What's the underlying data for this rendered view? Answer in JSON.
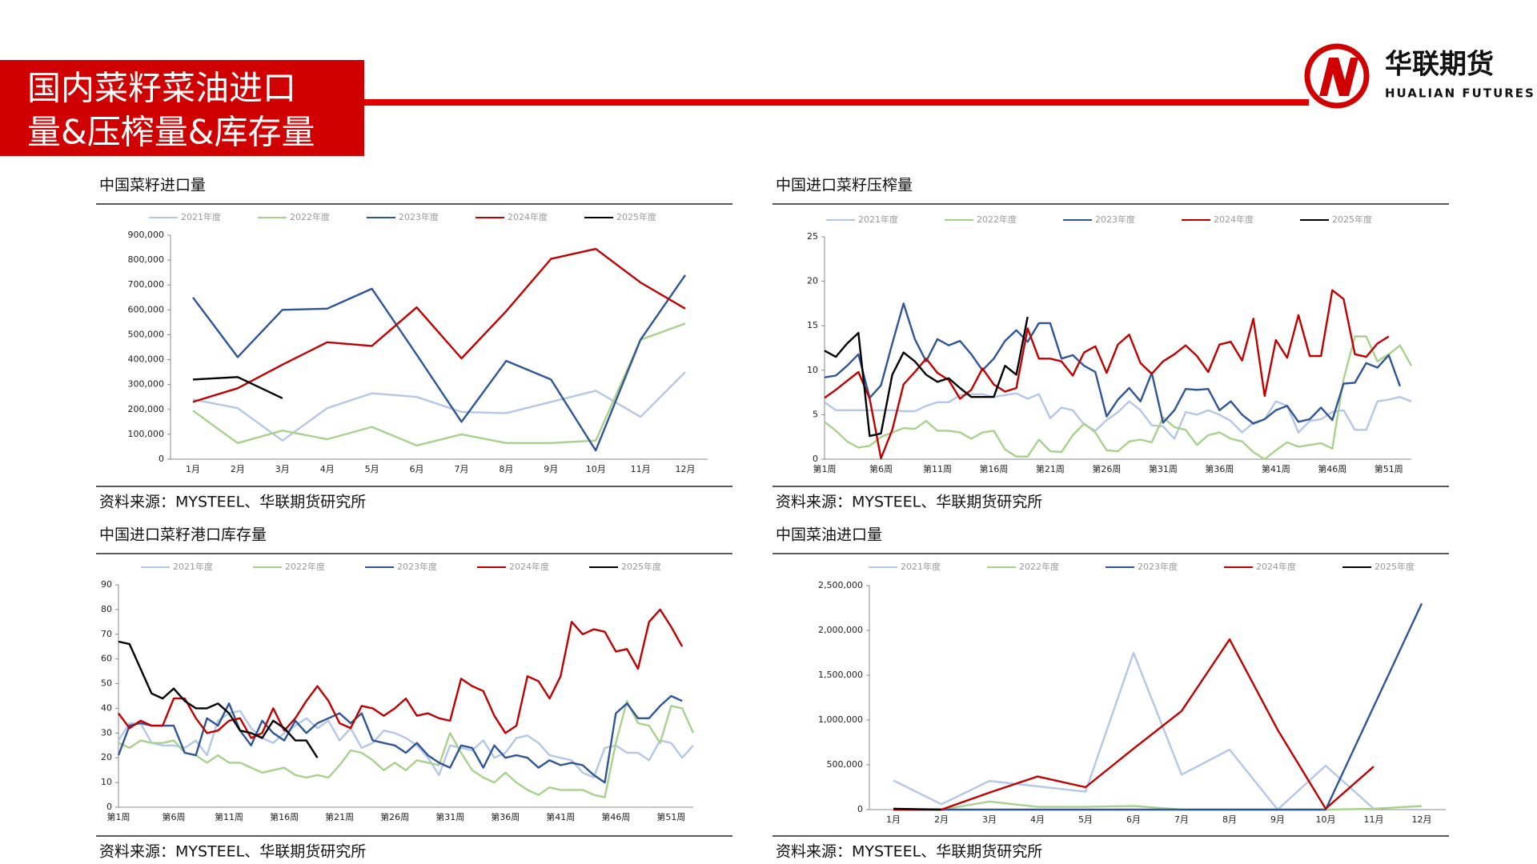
{
  "header": {
    "title_lines": [
      "国内菜籽菜油进口",
      "量&压榨量&库存量"
    ],
    "logo_name": "华联期货",
    "logo_subtitle": "HUALIAN FUTURES"
  },
  "chart_data": [
    {
      "type": "line",
      "title": "中国菜籽进口量",
      "source": "资料来源：MYSTEEL、华联期货研究所",
      "categories": [
        "1月",
        "2月",
        "3月",
        "4月",
        "5月",
        "6月",
        "7月",
        "8月",
        "9月",
        "10月",
        "11月",
        "12月"
      ],
      "ylim": [
        0,
        900000
      ],
      "yticks": [
        0,
        {
          "value": 100000,
          "label": "100,000"
        },
        {
          "value": 200000,
          "label": "200,000"
        },
        {
          "value": 300000,
          "label": "300,000"
        },
        {
          "value": 400000,
          "label": "400,000"
        },
        {
          "value": 500000,
          "label": "500,000"
        },
        {
          "value": 600000,
          "label": "600,000"
        },
        {
          "value": 700000,
          "label": "700,000"
        },
        {
          "value": 800000,
          "label": "800,000"
        },
        {
          "value": 900000,
          "label": "900,000"
        }
      ],
      "series": [
        {
          "name": "2021年度",
          "color": "#b4c7e7",
          "values": [
            240000,
            205000,
            75000,
            205000,
            265000,
            250000,
            190000,
            185000,
            230000,
            275000,
            170000,
            350000
          ]
        },
        {
          "name": "2022年度",
          "color": "#a9d18e",
          "values": [
            195000,
            65000,
            115000,
            80000,
            130000,
            55000,
            100000,
            65000,
            65000,
            75000,
            480000,
            545000
          ]
        },
        {
          "name": "2023年度",
          "color": "#2f5597",
          "values": [
            650000,
            410000,
            600000,
            605000,
            685000,
            420000,
            150000,
            395000,
            320000,
            35000,
            480000,
            740000
          ]
        },
        {
          "name": "2024年度",
          "color": "#c00000",
          "values": [
            230000,
            285000,
            380000,
            470000,
            455000,
            610000,
            405000,
            595000,
            805000,
            845000,
            710000,
            605000
          ]
        },
        {
          "name": "2025年度",
          "color": "#000000",
          "values": [
            320000,
            330000,
            245000,
            null,
            null,
            null,
            null,
            null,
            null,
            null,
            null,
            null
          ]
        }
      ]
    },
    {
      "type": "line",
      "title": "中国进口菜籽压榨量",
      "source": "资料来源：MYSTEEL、华联期货研究所",
      "categories": [
        "第1周",
        null,
        null,
        null,
        null,
        "第6周",
        null,
        null,
        null,
        null,
        "第11周",
        null,
        null,
        null,
        null,
        "第16周",
        null,
        null,
        null,
        null,
        "第21周",
        null,
        null,
        null,
        null,
        "第26周",
        null,
        null,
        null,
        null,
        "第31周",
        null,
        null,
        null,
        null,
        "第36周",
        null,
        null,
        null,
        null,
        "第41周",
        null,
        null,
        null,
        null,
        "第46周",
        null,
        null,
        null,
        null,
        "第51周",
        null,
        null
      ],
      "ylim": [
        0,
        25
      ],
      "yticks": [
        0,
        5,
        10,
        15,
        20,
        25
      ],
      "series": [
        {
          "name": "2021年度",
          "color": "#b4c7e7",
          "values": [
            6.4,
            5.5,
            5.5,
            5.5,
            5.5,
            5.5,
            5.5,
            5.4,
            5.4,
            6,
            6.4,
            6.4,
            7.2,
            7.3,
            7.3,
            7.0,
            7.2,
            7.4,
            6.8,
            7.3,
            4.6,
            5.8,
            5.5,
            3.9,
            3.2,
            4.4,
            5.3,
            6.5,
            5.5,
            3.8,
            3.7,
            2.3,
            5.3,
            5.0,
            5.5,
            5.0,
            4.3,
            3.0,
            4.1,
            4.5,
            6.5,
            6.0,
            3.0,
            4.3,
            4.5,
            5.3,
            5.5,
            3.3,
            3.3,
            6.5,
            6.7,
            7.0,
            6.5
          ]
        },
        {
          "name": "2022年度",
          "color": "#a9d18e",
          "values": [
            4.2,
            3.2,
            2.0,
            1.3,
            1.5,
            2.5,
            3,
            3.5,
            3.4,
            4.3,
            3.2,
            3.2,
            3.0,
            2.3,
            3.0,
            3.2,
            1.1,
            0.3,
            0.3,
            2.2,
            0.9,
            0.8,
            2.7,
            4.0,
            3.0,
            1.0,
            0.9,
            2.0,
            2.2,
            1.9,
            4.7,
            3.6,
            3.3,
            1.6,
            2.7,
            3.0,
            2.3,
            2.0,
            0.8,
            0,
            1,
            1.9,
            1.4,
            1.6,
            1.8,
            1.2,
            9.0,
            13.8,
            13.8,
            11.0,
            11.8,
            12.8,
            10.5
          ]
        },
        {
          "name": "2023年度",
          "color": "#2f5597",
          "values": [
            9.2,
            9.4,
            10.5,
            11.8,
            6.9,
            8.3,
            13.0,
            17.5,
            13.5,
            11.0,
            13.5,
            12.8,
            13.3,
            11.8,
            10.0,
            11.3,
            13.3,
            14.5,
            13.2,
            15.3,
            15.3,
            11.3,
            11.7,
            10.5,
            9.8,
            4.8,
            6.7,
            8.0,
            6.5,
            9.7,
            4.1,
            5.5,
            7.9,
            7.8,
            7.9,
            5.5,
            6.5,
            5.0,
            4.0,
            4.5,
            5.5,
            6.0,
            4.2,
            4.5,
            5.8,
            4.4,
            8.5,
            8.6,
            10.8,
            10.3,
            11.7,
            8.2,
            null
          ]
        },
        {
          "name": "2024年度",
          "color": "#c00000",
          "values": [
            6.9,
            7.8,
            8.8,
            9.8,
            6.8,
            0.1,
            3.3,
            8.4,
            9.8,
            11.3,
            9.7,
            8.9,
            6.8,
            7.8,
            10.2,
            8.4,
            7.6,
            8.0,
            14.7,
            11.3,
            11.3,
            11.0,
            9.4,
            12.0,
            12.7,
            9.7,
            12.9,
            14.0,
            10.8,
            9.6,
            11.0,
            11.8,
            12.8,
            11.6,
            9.8,
            12.9,
            13.2,
            11.1,
            15.8,
            7.1,
            13.4,
            11.4,
            16.2,
            11.6,
            11.6,
            19.0,
            18.0,
            11.8,
            11.5,
            13.0,
            13.8,
            null,
            null
          ]
        },
        {
          "name": "2025年度",
          "color": "#000000",
          "values": [
            12.2,
            11.5,
            13.0,
            14.2,
            2.6,
            2.9,
            9.5,
            12.0,
            11.0,
            9.5,
            8.7,
            9.1,
            8.0,
            7.0,
            7.0,
            7.0,
            10.5,
            9.5,
            16.0,
            null,
            null,
            null,
            null,
            null,
            null,
            null,
            null,
            null,
            null,
            null,
            null,
            null,
            null,
            null,
            null,
            null,
            null,
            null,
            null,
            null,
            null,
            null,
            null,
            null,
            null,
            null,
            null,
            null,
            null,
            null,
            null,
            null,
            null
          ]
        }
      ]
    },
    {
      "type": "line",
      "title": "中国进口菜籽港口库存量",
      "source": "资料来源：MYSTEEL、华联期货研究所",
      "categories": [
        "第1周",
        null,
        null,
        null,
        null,
        "第6周",
        null,
        null,
        null,
        null,
        "第11周",
        null,
        null,
        null,
        null,
        "第16周",
        null,
        null,
        null,
        null,
        "第21周",
        null,
        null,
        null,
        null,
        "第26周",
        null,
        null,
        null,
        null,
        "第31周",
        null,
        null,
        null,
        null,
        "第36周",
        null,
        null,
        null,
        null,
        "第41周",
        null,
        null,
        null,
        null,
        "第46周",
        null,
        null,
        null,
        null,
        "第51周",
        null,
        null
      ],
      "ylim": [
        0,
        90
      ],
      "yticks": [
        0,
        10,
        20,
        30,
        40,
        50,
        60,
        70,
        80,
        90
      ],
      "series": [
        {
          "name": "2021年度",
          "color": "#b4c7e7",
          "values": [
            27,
            34,
            34,
            26,
            25,
            25,
            24,
            27,
            21,
            35,
            38,
            39,
            32,
            28,
            26,
            30,
            33,
            36,
            32,
            35,
            27,
            32,
            24,
            26,
            31,
            30,
            28,
            25,
            20,
            13,
            25,
            24,
            23,
            27,
            20,
            22,
            28,
            29,
            26,
            21,
            20,
            19,
            14,
            12,
            24,
            25,
            22,
            22,
            19,
            27,
            26,
            20,
            25
          ]
        },
        {
          "name": "2022年度",
          "color": "#a9d18e",
          "values": [
            26,
            24,
            27,
            26,
            26,
            27,
            22,
            21,
            18,
            21,
            18,
            18,
            16,
            14,
            15,
            16,
            13,
            12,
            13,
            12,
            17,
            23,
            22,
            19,
            15,
            18,
            15,
            19,
            18,
            17,
            30,
            22,
            15,
            12,
            10,
            14,
            10,
            7,
            5,
            8,
            7,
            7,
            7,
            5,
            4,
            26,
            43,
            34,
            33,
            26,
            41,
            40,
            30
          ]
        },
        {
          "name": "2023年度",
          "color": "#2f5597",
          "values": [
            21,
            33,
            34,
            33,
            33,
            33,
            22,
            21,
            36,
            33,
            42,
            31,
            25,
            35,
            30,
            27,
            35,
            30,
            34,
            36,
            38,
            34,
            38,
            27,
            26,
            25,
            22,
            26,
            21,
            18,
            16,
            25,
            24,
            16,
            25,
            20,
            21,
            20,
            16,
            19,
            17,
            18,
            17,
            13,
            10,
            38,
            42,
            36,
            36,
            41,
            45,
            43,
            null
          ]
        },
        {
          "name": "2024年度",
          "color": "#c00000",
          "values": [
            38,
            32,
            35,
            33,
            33,
            44,
            44,
            36,
            30,
            31,
            35,
            36,
            28,
            30,
            40,
            31,
            36,
            43,
            49,
            43,
            34,
            32,
            41,
            40,
            37,
            40,
            44,
            37,
            38,
            36,
            35,
            52,
            49,
            47,
            37,
            30,
            33,
            53,
            51,
            44,
            53,
            75,
            70,
            72,
            71,
            63,
            64,
            56,
            75,
            80,
            73,
            65,
            null
          ]
        },
        {
          "name": "2025年度",
          "color": "#000000",
          "values": [
            67,
            66,
            56,
            46,
            44,
            48,
            43,
            40,
            40,
            42,
            38,
            31,
            30,
            28,
            35,
            32,
            27,
            27,
            20,
            null,
            null,
            null,
            null,
            null,
            null,
            null,
            null,
            null,
            null,
            null,
            null,
            null,
            null,
            null,
            null,
            null,
            null,
            null,
            null,
            null,
            null,
            null,
            null,
            null,
            null,
            null,
            null,
            null,
            null,
            null,
            null,
            null,
            null
          ]
        }
      ]
    },
    {
      "type": "line",
      "title": "中国菜油进口量",
      "source": "资料来源：MYSTEEL、华联期货研究所",
      "categories": [
        "1月",
        "2月",
        "3月",
        "4月",
        "5月",
        "6月",
        "7月",
        "8月",
        "9月",
        "10月",
        "11月",
        "12月"
      ],
      "ylim": [
        0,
        2500000
      ],
      "yticks": [
        0,
        {
          "value": 500000,
          "label": "500,000"
        },
        {
          "value": 1000000,
          "label": "1,000,000"
        },
        {
          "value": 1500000,
          "label": "1,500,000"
        },
        {
          "value": 2000000,
          "label": "2,000,000"
        },
        {
          "value": 2500000,
          "label": "2,500,000"
        }
      ],
      "series": [
        {
          "name": "2021年度",
          "color": "#b4c7e7",
          "values": [
            325000,
            60000,
            320000,
            260000,
            200000,
            1750000,
            390000,
            670000,
            0,
            490000,
            10000,
            null
          ]
        },
        {
          "name": "2022年度",
          "color": "#a9d18e",
          "values": [
            10000,
            0,
            90000,
            30000,
            30000,
            40000,
            0,
            0,
            0,
            0,
            10000,
            40000
          ]
        },
        {
          "name": "2023年度",
          "color": "#2f5597",
          "values": [
            0,
            0,
            0,
            0,
            0,
            0,
            0,
            0,
            0,
            0,
            1150000,
            2300000
          ]
        },
        {
          "name": "2024年度",
          "color": "#c00000",
          "values": [
            0,
            0,
            190000,
            370000,
            250000,
            680000,
            1100000,
            1900000,
            890000,
            10000,
            480000,
            null
          ]
        },
        {
          "name": "2025年度",
          "color": "#000000",
          "values": [
            10000,
            0,
            null,
            null,
            null,
            null,
            null,
            null,
            null,
            null,
            null,
            null
          ]
        }
      ]
    }
  ]
}
